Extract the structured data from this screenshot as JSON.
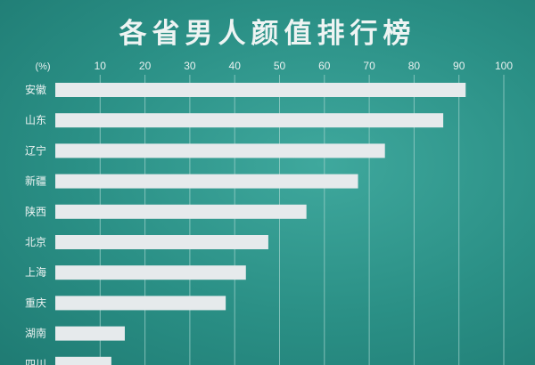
{
  "chart_data": {
    "type": "bar",
    "orientation": "horizontal",
    "title": "各省男人颜值排行榜",
    "unit_label": "(%)",
    "xlim": [
      0,
      100
    ],
    "x_ticks": [
      10,
      20,
      30,
      40,
      50,
      60,
      70,
      80,
      90,
      100
    ],
    "categories": [
      "安徽",
      "山东",
      "辽宁",
      "新疆",
      "陕西",
      "北京",
      "上海",
      "重庆",
      "湖南",
      "四川"
    ],
    "values": [
      91.5,
      86.5,
      73.5,
      67.5,
      56,
      47.5,
      42.5,
      38,
      15.5,
      12.5
    ],
    "grid": true,
    "colors": {
      "background": "#2a8f85",
      "bar": "#e6eaec",
      "text": "#eef4f3",
      "grid": "#9fd1cb"
    }
  }
}
